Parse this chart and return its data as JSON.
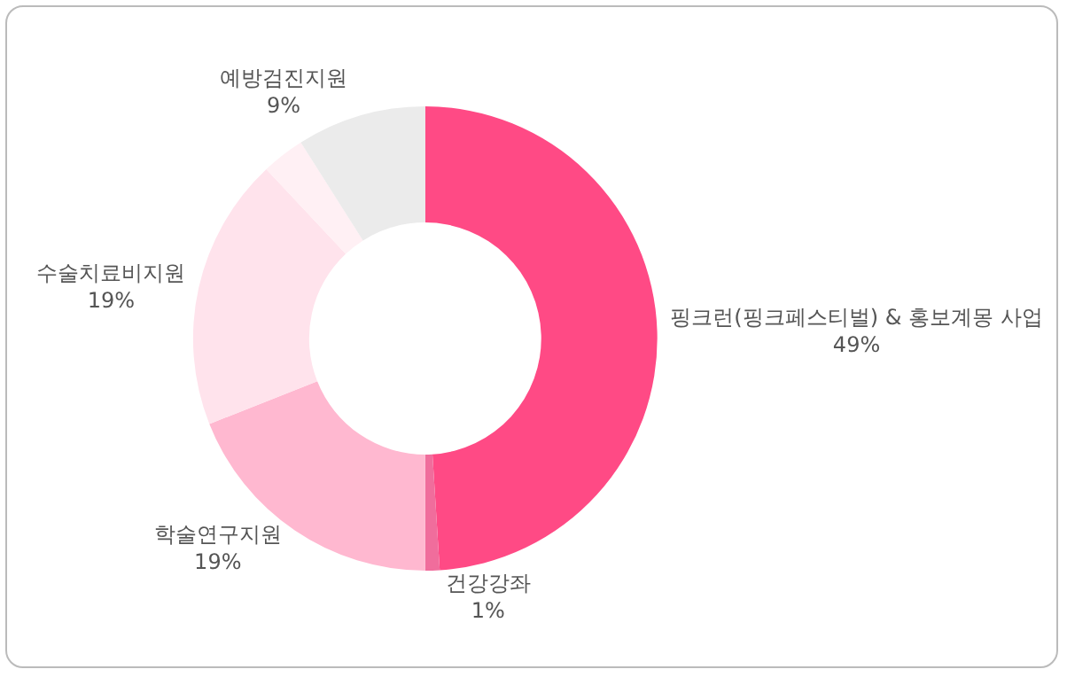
{
  "chart_data": {
    "type": "donut",
    "categories": [
      "핑크런(핑크페스티벌) & 홍보계몽 사업",
      "건강강좌",
      "학술연구지원",
      "수술치료비지원",
      null,
      "예방검진지원"
    ],
    "values": [
      49,
      1,
      19,
      19,
      3,
      9
    ],
    "value_labels": [
      "49%",
      "1%",
      "19%",
      "19%",
      null,
      "9%"
    ],
    "colors": [
      "#ff4a85",
      "#f06d9c",
      "#ffb8d0",
      "#ffe3ec",
      "#fff0f4",
      "#ebebeb"
    ],
    "legend": false
  }
}
